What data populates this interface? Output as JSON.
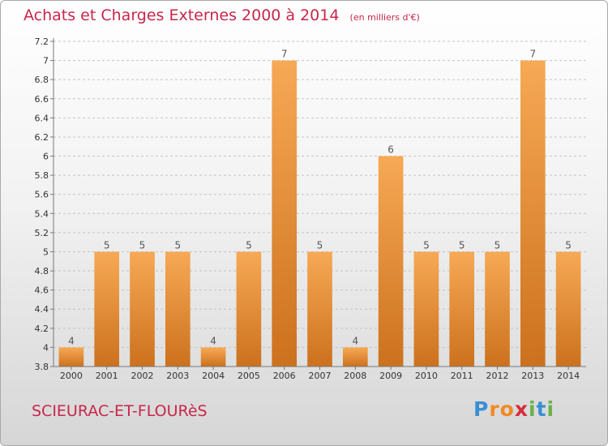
{
  "chart_data": {
    "type": "bar",
    "title": "Achats et Charges Externes 2000 à 2014",
    "subtitle": "(en milliers d'€)",
    "categories": [
      "2000",
      "2001",
      "2002",
      "2003",
      "2004",
      "2005",
      "2006",
      "2007",
      "2008",
      "2009",
      "2010",
      "2011",
      "2012",
      "2013",
      "2014"
    ],
    "values": [
      4,
      5,
      5,
      5,
      4,
      5,
      7,
      5,
      4,
      6,
      5,
      5,
      5,
      7,
      5
    ],
    "value_labels": [
      "4",
      "5",
      "5",
      "5",
      "4",
      "5",
      "7",
      "5",
      "4",
      "6",
      "5",
      "5",
      "5",
      "7",
      "5"
    ],
    "ylim": [
      3.8,
      7.2
    ],
    "yticks": [
      3.8,
      4,
      4.2,
      4.4,
      4.6,
      4.8,
      5,
      5.2,
      5.4,
      5.6,
      5.8,
      6,
      6.2,
      6.4,
      6.6,
      6.8,
      7,
      7.2
    ],
    "ytick_labels": [
      "3.8",
      "4",
      "4.2",
      "4.4",
      "4.6",
      "4.8",
      "5",
      "5.2",
      "5.4",
      "5.6",
      "5.8",
      "6",
      "6.2",
      "6.4",
      "6.6",
      "6.8",
      "7",
      "7.2"
    ],
    "grid": "horizontal dashed",
    "bar_color": "#f0993a",
    "xlabel": "",
    "ylabel": ""
  },
  "commune": "SCIEURAC-ET-FLOURèS",
  "logo": {
    "letters": [
      "P",
      "r",
      "o",
      "x",
      "i",
      "t",
      "i"
    ],
    "colors": [
      "#3a8fd4",
      "#f08a22",
      "#f08a22",
      "#d62c3a",
      "#6ab04c",
      "#3a8fd4",
      "#6ab04c"
    ]
  },
  "colors": {
    "title": "#c8264a",
    "bar": "#f0993a",
    "bar_dark": "#cf7420"
  }
}
